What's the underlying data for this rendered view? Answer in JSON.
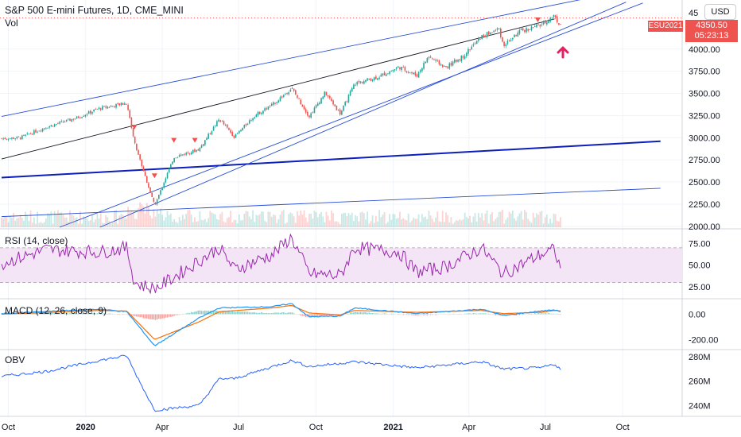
{
  "header": {
    "title": "S&P 500 E-mini Futures, 1D, CME_MINI",
    "vol_label": "Vol"
  },
  "badges": {
    "currency": "USD",
    "symbol": "ESU2021",
    "last_price": "4350.50",
    "countdown": "05:23:13"
  },
  "panes": {
    "rsi_label": "RSI (14, close)",
    "macd_label": "MACD (12, 26, close, 9)",
    "obv_label": "OBV"
  },
  "colors": {
    "up": "#26a69a",
    "down": "#ef5350",
    "trendline": "#2a4fd6",
    "trendline_bold": "#0d1fb8",
    "trendline_black": "#131722",
    "rsi": "#9c27b0",
    "rsi_band": "#f3e5f5",
    "macd": "#2196f3",
    "signal": "#ff6d00",
    "obv": "#2962ff",
    "marker": "#ef5350",
    "arrow": "#e91e63",
    "grid": "#f0f3fa",
    "axis_text": "#131722"
  },
  "chart_data": [
    {
      "type": "candlestick",
      "title": "S&P 500 E-mini Futures, 1D, CME_MINI",
      "x_ticks": [
        "Oct",
        "2020",
        "Apr",
        "Jul",
        "Oct",
        "2021",
        "Apr",
        "Jul",
        "Oct"
      ],
      "y_ticks": [
        "4000.00",
        "3750.00",
        "3500.00",
        "3250.00",
        "3000.00",
        "2750.00",
        "2500.00",
        "2250.00",
        "2000.00"
      ],
      "ylim": [
        1990,
        4500
      ],
      "last_price": 4350.5,
      "x": [
        "2019-09-23",
        "2019-10-15",
        "2019-11-15",
        "2019-12-20",
        "2020-01-17",
        "2020-02-19",
        "2020-02-28",
        "2020-03-23",
        "2020-04-15",
        "2020-05-15",
        "2020-06-08",
        "2020-06-26",
        "2020-07-20",
        "2020-08-10",
        "2020-09-02",
        "2020-09-23",
        "2020-10-12",
        "2020-10-30",
        "2020-11-16",
        "2020-12-15",
        "2021-01-08",
        "2021-01-29",
        "2021-02-12",
        "2021-03-04",
        "2021-03-25",
        "2021-04-16",
        "2021-05-07",
        "2021-05-12",
        "2021-06-01",
        "2021-06-25",
        "2021-07-12",
        "2021-07-19",
        "2021-07-20"
      ],
      "close": [
        2990,
        3000,
        3120,
        3220,
        3330,
        3390,
        2950,
        2230,
        2780,
        2870,
        3210,
        3010,
        3250,
        3370,
        3560,
        3240,
        3510,
        3270,
        3610,
        3690,
        3800,
        3700,
        3920,
        3790,
        3920,
        4140,
        4230,
        4040,
        4200,
        4270,
        4380,
        4250,
        4350
      ]
    },
    {
      "type": "line",
      "name": "RSI (14, close)",
      "x": [
        "2019-09-23",
        "2019-11-15",
        "2020-01-17",
        "2020-02-19",
        "2020-02-28",
        "2020-03-23",
        "2020-05-15",
        "2020-06-08",
        "2020-06-26",
        "2020-08-10",
        "2020-09-02",
        "2020-09-23",
        "2020-10-30",
        "2020-11-16",
        "2021-01-08",
        "2021-01-29",
        "2021-03-04",
        "2021-04-16",
        "2021-05-12",
        "2021-06-25",
        "2021-07-12",
        "2021-07-19",
        "2021-07-20"
      ],
      "values": [
        52,
        68,
        65,
        70,
        30,
        22,
        55,
        70,
        45,
        62,
        82,
        40,
        38,
        70,
        65,
        42,
        48,
        70,
        40,
        62,
        68,
        45,
        58
      ],
      "y_ticks": [
        "75.00",
        "50.00",
        "25.00"
      ],
      "ylim": [
        15,
        90
      ]
    },
    {
      "type": "line",
      "name": "MACD (12, 26, close, 9)",
      "x": [
        "2019-09-23",
        "2020-01-17",
        "2020-02-19",
        "2020-03-23",
        "2020-05-15",
        "2020-06-08",
        "2020-08-10",
        "2020-09-02",
        "2020-09-23",
        "2020-10-30",
        "2020-11-16",
        "2021-01-29",
        "2021-04-16",
        "2021-05-12",
        "2021-06-25",
        "2021-07-12",
        "2021-07-20"
      ],
      "values": [
        5,
        40,
        20,
        -250,
        -30,
        50,
        60,
        85,
        -20,
        -15,
        50,
        5,
        40,
        -10,
        25,
        35,
        20
      ],
      "signal": [
        0,
        30,
        25,
        -200,
        -60,
        20,
        50,
        70,
        10,
        -5,
        30,
        15,
        30,
        5,
        15,
        30,
        25
      ],
      "y_ticks": [
        "0.00",
        "-200.00"
      ],
      "ylim": [
        -280,
        110
      ]
    },
    {
      "type": "line",
      "name": "OBV",
      "x": [
        "2019-09-23",
        "2019-11-15",
        "2020-01-17",
        "2020-02-19",
        "2020-02-28",
        "2020-03-23",
        "2020-05-15",
        "2020-06-08",
        "2020-06-26",
        "2020-09-02",
        "2020-09-23",
        "2020-11-16",
        "2021-01-29",
        "2021-04-16",
        "2021-05-12",
        "2021-06-25",
        "2021-07-12",
        "2021-07-19",
        "2021-07-20"
      ],
      "values": [
        264,
        268,
        277,
        281,
        268,
        236,
        240,
        262,
        262,
        277,
        272,
        276,
        271,
        276,
        270,
        271,
        274,
        270,
        271
      ],
      "y_ticks": [
        "280M",
        "260M",
        "240M"
      ],
      "ylim": [
        231,
        286
      ]
    }
  ]
}
